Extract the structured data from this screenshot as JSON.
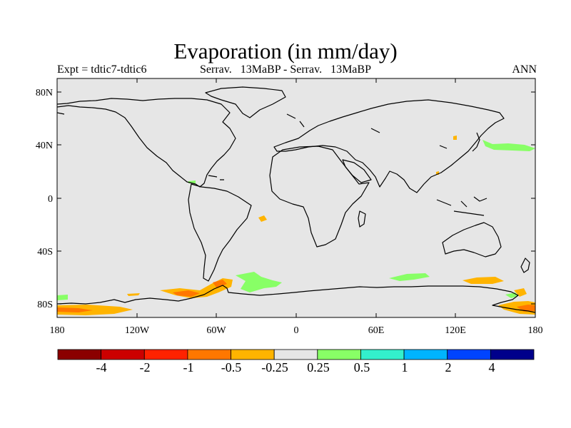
{
  "title": "Evaporation (in mm/day)",
  "subtitle_left": "Expt = tdtic7-tdtic6",
  "subtitle_center": "Serrav.   13MaBP - Serrav.   13MaBP",
  "subtitle_right": "ANN",
  "map": {
    "projection": "cylindrical-equidistant",
    "lon_range": [
      -180,
      180
    ],
    "lat_range": [
      -90,
      90
    ],
    "background_color": "#e6e6e6",
    "lat_ticks": [
      "80N",
      "40N",
      "0",
      "40S",
      "80S"
    ],
    "lon_ticks": [
      "180",
      "120W",
      "60W",
      "0",
      "60E",
      "120E",
      "180"
    ]
  },
  "colorbar": {
    "colors": [
      "#8b0000",
      "#cc0000",
      "#ff2200",
      "#ff7700",
      "#ffb400",
      "#e6e6e6",
      "#88ff66",
      "#33f0cc",
      "#00b4ff",
      "#0044ff",
      "#00008b"
    ],
    "labels": [
      "-4",
      "-2",
      "-1",
      "-0.5",
      "-0.25",
      "0.25",
      "0.5",
      "1",
      "2",
      "4"
    ]
  }
}
